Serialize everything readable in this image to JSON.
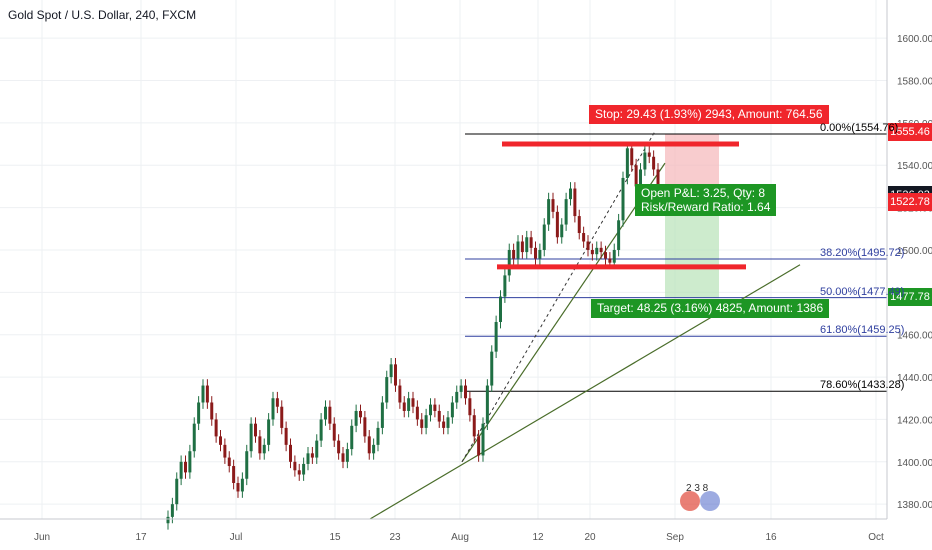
{
  "title": {
    "symbol": "Gold Spot / U.S. Dollar, 240, FXCM"
  },
  "colors": {
    "up": "#1f6f43",
    "down": "#8b1a1a",
    "stop_zone": "#f5b7b9",
    "target_zone": "#b8e2b8",
    "fib_blue": "#2f3f9f",
    "fib_black": "#000000",
    "trend": "#4a6d2a",
    "red_line": "#f0262c"
  },
  "chart_data": {
    "type": "candlestick",
    "x_axis_labels": [
      "Jun",
      "17",
      "Jul",
      "15",
      "23",
      "Aug",
      "12",
      "20",
      "Sep",
      "16",
      "Oct"
    ],
    "y_axis_ticks": [
      1380,
      1400,
      1420,
      1440,
      1460,
      1480,
      1500,
      1520,
      1540,
      1560,
      1580,
      1600
    ],
    "ylim": [
      1373,
      1618
    ],
    "price_tags": [
      {
        "value": "1555.46",
        "color": "#f0262c"
      },
      {
        "value": "1526.03",
        "color": "#131722"
      },
      {
        "value": "1522.78",
        "color": "#f0262c"
      },
      {
        "value": "1477.78",
        "color": "#1d9624"
      }
    ],
    "fib_levels": [
      {
        "label": "0.00%(1554.76)",
        "value": 1554.76
      },
      {
        "label": "38.20%(1495.72)",
        "value": 1495.72
      },
      {
        "label": "50.00%(1477.49)",
        "value": 1477.49
      },
      {
        "label": "61.80%(1459.25)",
        "value": 1459.25
      },
      {
        "label": "78.60%(1433.28)",
        "value": 1433.28
      }
    ],
    "position": {
      "stop_text": "Stop: 29.43 (1.93%) 2943, Amount: 764.56",
      "target_text": "Target: 48.25 (3.16%) 4825, Amount: 1386",
      "pnl_line1": "Open P&L: 3.25, Qty: 8",
      "pnl_line2": "Risk/Reward Ratio: 1.64",
      "entry": 1525.46,
      "stop": 1554.89,
      "target": 1477.21
    },
    "horizontal_red_lines": [
      1550,
      1492
    ],
    "closes": [
      1374,
      1380,
      1392,
      1400,
      1395,
      1405,
      1418,
      1428,
      1436,
      1428,
      1420,
      1412,
      1408,
      1402,
      1398,
      1390,
      1386,
      1392,
      1405,
      1418,
      1412,
      1404,
      1408,
      1420,
      1430,
      1426,
      1416,
      1408,
      1400,
      1396,
      1394,
      1399,
      1404,
      1402,
      1410,
      1420,
      1426,
      1418,
      1410,
      1404,
      1400,
      1406,
      1417,
      1424,
      1421,
      1412,
      1404,
      1408,
      1416,
      1428,
      1440,
      1446,
      1436,
      1428,
      1424,
      1430,
      1426,
      1420,
      1416,
      1422,
      1427,
      1424,
      1419,
      1416,
      1421,
      1428,
      1433,
      1436,
      1430,
      1422,
      1412,
      1403,
      1418,
      1436,
      1452,
      1466,
      1478,
      1488,
      1500,
      1496,
      1504,
      1499,
      1506,
      1501,
      1496,
      1500,
      1512,
      1524,
      1518,
      1506,
      1512,
      1524,
      1529,
      1516,
      1508,
      1504,
      1500,
      1498,
      1501,
      1499,
      1496,
      1494,
      1500,
      1514,
      1534,
      1548,
      1540,
      1530,
      1538,
      1546,
      1544,
      1538,
      1526
    ]
  },
  "logo": {
    "text": "2 3 8"
  }
}
